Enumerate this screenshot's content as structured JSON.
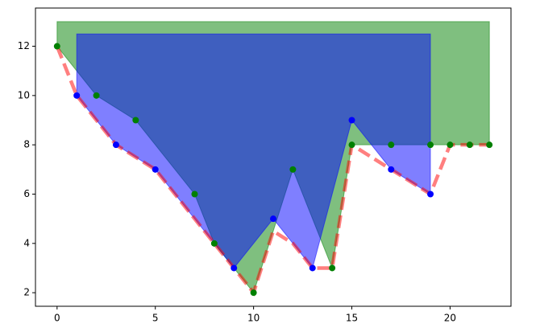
{
  "chart_data": {
    "type": "line",
    "xlim": [
      -1.1,
      23.1
    ],
    "ylim": [
      1.45,
      13.55
    ],
    "xticks": [
      0,
      5,
      10,
      15,
      20
    ],
    "yticks": [
      2,
      4,
      6,
      8,
      10,
      12
    ],
    "series": [
      {
        "color": "#008000",
        "x": [
          0,
          2,
          4,
          7,
          8,
          10,
          12,
          14,
          15,
          17,
          19,
          20,
          21,
          22
        ],
        "values": [
          12,
          10,
          9,
          6,
          4,
          2,
          7,
          3,
          8,
          8,
          8,
          8,
          8,
          8
        ],
        "fill_top": 13,
        "markers": true
      },
      {
        "color": "#0000ff",
        "x": [
          1,
          3,
          5,
          9,
          11,
          13,
          15,
          17,
          19
        ],
        "values": [
          10,
          8,
          7,
          3,
          5,
          3,
          9,
          7,
          6
        ],
        "fill_top": 12.5,
        "markers": true
      },
      {
        "color": "#ff0000",
        "style": "dashed",
        "x": [
          0,
          1,
          2,
          3,
          4,
          5,
          7,
          8,
          9,
          10,
          11,
          12,
          13,
          14,
          15,
          17,
          19,
          20,
          21,
          22
        ],
        "values": [
          12,
          10,
          9,
          8,
          7.5,
          7,
          5,
          4,
          3,
          2,
          4.5,
          4,
          3,
          3,
          8,
          7,
          6,
          8,
          8,
          8
        ],
        "markers": false
      }
    ]
  }
}
